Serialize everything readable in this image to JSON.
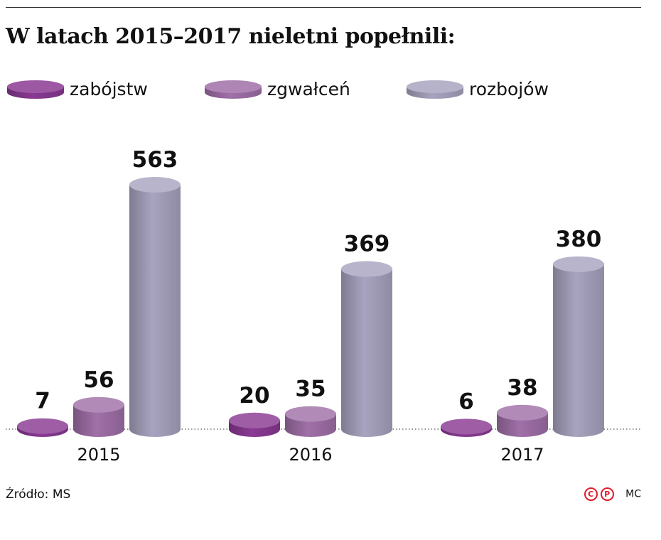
{
  "header": {
    "title": "W latach 2015–2017 nieletni popełnili:"
  },
  "footer": {
    "source": "Źródło: MS",
    "copyright_c": "C",
    "copyright_p": "P",
    "author": "MC"
  },
  "chart_data": {
    "type": "bar",
    "style": "3d-cylinder",
    "title": "W latach 2015–2017 nieletni popełnili:",
    "xlabel": "",
    "ylabel": "",
    "categories": [
      "2015",
      "2016",
      "2017"
    ],
    "series": [
      {
        "name": "zabójstw",
        "values": [
          7,
          20,
          6
        ],
        "color": "#8a3a93"
      },
      {
        "name": "zgwałceń",
        "values": [
          56,
          35,
          38
        ],
        "color": "#a070a8"
      },
      {
        "name": "rozbojów",
        "values": [
          563,
          369,
          380
        ],
        "color": "#a8a4c0"
      }
    ],
    "legend": "top-left",
    "grid": false,
    "baseline": "dotted"
  }
}
